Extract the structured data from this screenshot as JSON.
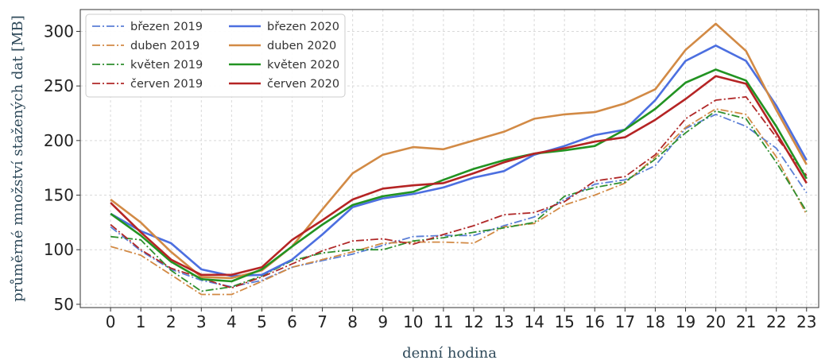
{
  "chart_data": {
    "type": "line",
    "title": "",
    "xlabel": "denní hodina",
    "ylabel": "průměrné množství stažených dat [MB]",
    "x": [
      0,
      1,
      2,
      3,
      4,
      5,
      6,
      7,
      8,
      9,
      10,
      11,
      12,
      13,
      14,
      15,
      16,
      17,
      18,
      19,
      20,
      21,
      22,
      23
    ],
    "xlim": [
      -1,
      23.4
    ],
    "ylim": [
      47,
      320
    ],
    "yticks": [
      50,
      100,
      150,
      200,
      250,
      300
    ],
    "grid": true,
    "legend_position": "top-left",
    "legend_columns": 2,
    "series": [
      {
        "name": "březen 2019",
        "color": "#5b7fd6",
        "style": "dashdot",
        "values": [
          121,
          99,
          82,
          72,
          66,
          72,
          84,
          90,
          96,
          104,
          112,
          113,
          113,
          122,
          130,
          146,
          160,
          164,
          177,
          211,
          224,
          213,
          193,
          152
        ]
      },
      {
        "name": "duben 2019",
        "color": "#d28a45",
        "style": "dashdot",
        "values": [
          103,
          95,
          77,
          59,
          59,
          71,
          84,
          91,
          98,
          106,
          107,
          107,
          106,
          121,
          124,
          141,
          150,
          161,
          185,
          212,
          229,
          224,
          185,
          132
        ]
      },
      {
        "name": "květen 2019",
        "color": "#2e8f2e",
        "style": "dashdot",
        "values": [
          112,
          109,
          81,
          62,
          66,
          76,
          90,
          97,
          100,
          100,
          108,
          111,
          116,
          120,
          125,
          149,
          157,
          162,
          183,
          207,
          227,
          220,
          180,
          135
        ]
      },
      {
        "name": "červen 2019",
        "color": "#b02828",
        "style": "dashdot",
        "values": [
          123,
          100,
          83,
          74,
          65,
          75,
          87,
          99,
          108,
          110,
          105,
          114,
          122,
          132,
          134,
          144,
          163,
          167,
          187,
          220,
          237,
          240,
          203,
          168
        ]
      },
      {
        "name": "březen 2020",
        "color": "#4c6fe0",
        "style": "solid",
        "values": [
          133,
          117,
          106,
          82,
          76,
          77,
          91,
          114,
          139,
          147,
          151,
          157,
          166,
          172,
          187,
          195,
          205,
          210,
          237,
          273,
          287,
          273,
          232,
          182
        ]
      },
      {
        "name": "duben 2020",
        "color": "#d28a45",
        "style": "solid",
        "values": [
          146,
          125,
          98,
          75,
          74,
          81,
          103,
          137,
          170,
          187,
          194,
          192,
          200,
          208,
          220,
          224,
          226,
          234,
          247,
          283,
          307,
          282,
          228,
          178
        ]
      },
      {
        "name": "květen 2020",
        "color": "#229322",
        "style": "solid",
        "values": [
          133,
          113,
          89,
          73,
          71,
          82,
          103,
          123,
          141,
          149,
          153,
          164,
          174,
          182,
          188,
          191,
          195,
          210,
          229,
          253,
          265,
          255,
          213,
          165
        ]
      },
      {
        "name": "červen 2020",
        "color": "#b52424",
        "style": "solid",
        "values": [
          143,
          116,
          91,
          77,
          77,
          84,
          109,
          127,
          146,
          156,
          159,
          161,
          170,
          180,
          188,
          193,
          199,
          203,
          219,
          238,
          259,
          252,
          207,
          161
        ]
      }
    ]
  }
}
